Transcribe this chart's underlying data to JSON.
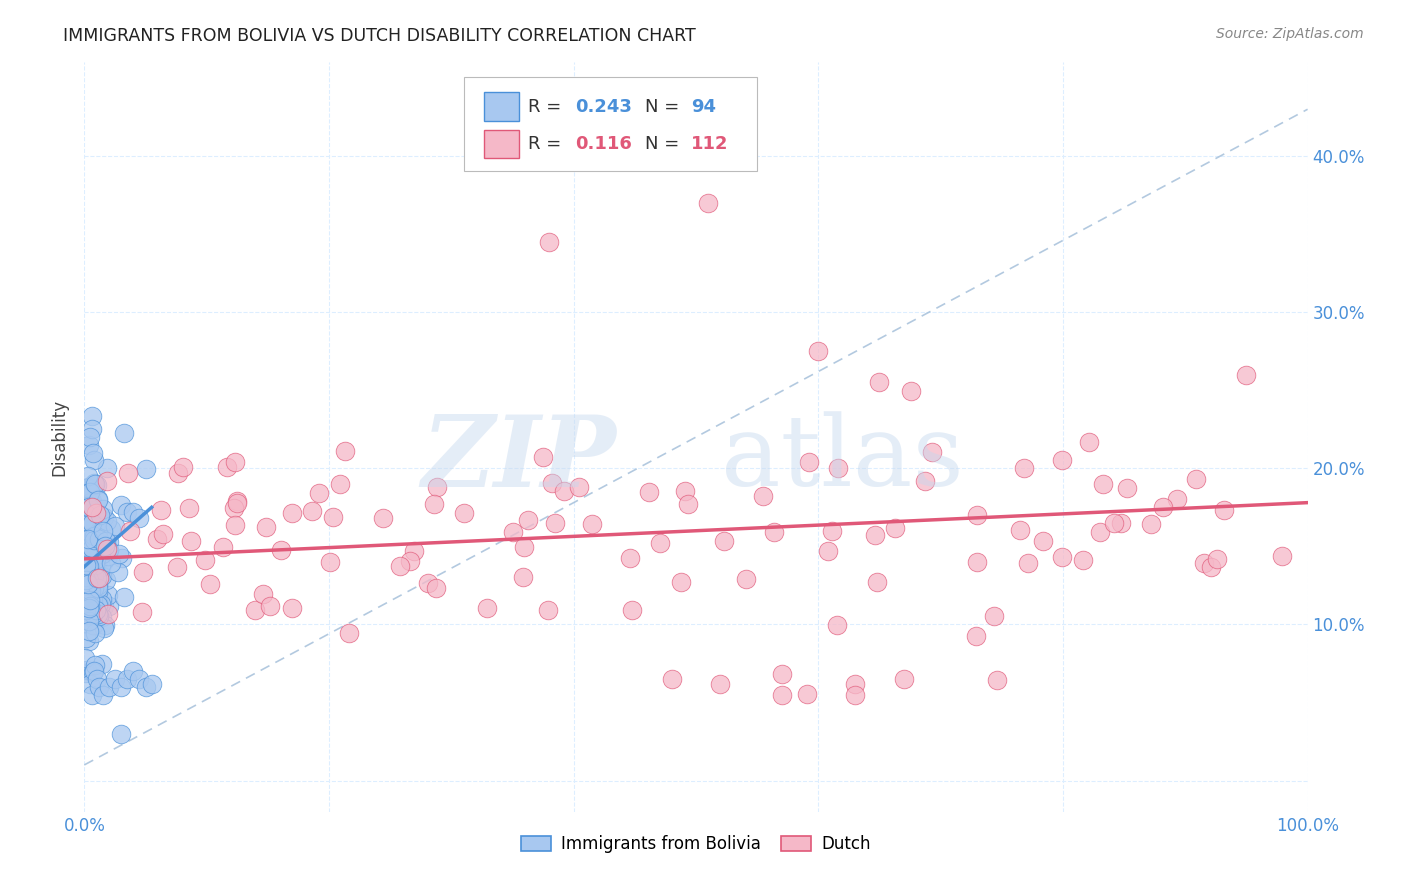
{
  "title": "IMMIGRANTS FROM BOLIVIA VS DUTCH DISABILITY CORRELATION CHART",
  "source": "Source: ZipAtlas.com",
  "ylabel": "Disability",
  "blue_color": "#A8C8F0",
  "pink_color": "#F5B8C8",
  "blue_line_color": "#4A90D9",
  "pink_line_color": "#E05878",
  "dashed_line_color": "#A0BCD8",
  "title_color": "#222222",
  "tick_color": "#4A90D9",
  "grid_color": "#DDEEFF",
  "background_color": "#FFFFFF",
  "xlim": [
    0.0,
    1.0
  ],
  "ylim": [
    -0.02,
    0.46
  ],
  "blue_line_x0": 0.0,
  "blue_line_x1": 0.055,
  "blue_line_y0": 0.137,
  "blue_line_y1": 0.175,
  "pink_line_x0": 0.0,
  "pink_line_x1": 1.0,
  "pink_line_y0": 0.142,
  "pink_line_y1": 0.178
}
